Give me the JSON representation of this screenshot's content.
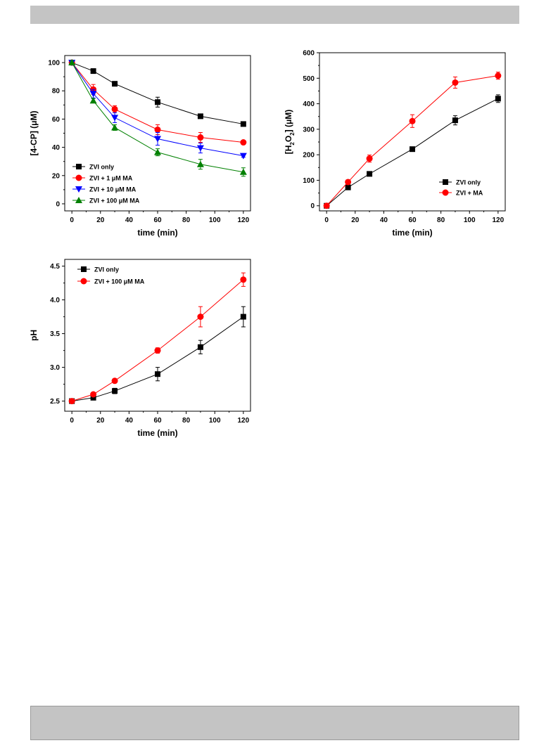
{
  "chart_data": [
    {
      "id": "chart1",
      "type": "line",
      "xlabel": "time (min)",
      "ylabel": "[4-CP]  (μM)",
      "xlim": [
        -5,
        125
      ],
      "ylim": [
        -5,
        105
      ],
      "xticks": [
        0,
        20,
        40,
        60,
        80,
        100,
        120
      ],
      "yticks": [
        0,
        20,
        40,
        60,
        80,
        100
      ],
      "grid": false,
      "legend_position": "bottom-left",
      "series": [
        {
          "name": "ZVI only",
          "color": "#000000",
          "marker": "square",
          "x": [
            0,
            15,
            30,
            60,
            90,
            120
          ],
          "y": [
            100,
            94,
            85,
            72,
            62,
            56.5
          ],
          "err": [
            1.5,
            1.5,
            1.5,
            3.5,
            1.5,
            1
          ]
        },
        {
          "name": "ZVI + 1 μM MA",
          "color": "#ff0000",
          "marker": "circle",
          "x": [
            0,
            15,
            30,
            60,
            90,
            120
          ],
          "y": [
            100,
            81,
            67,
            52.5,
            47,
            43.5
          ],
          "err": [
            1.5,
            3.5,
            2.5,
            3.5,
            3.5,
            1
          ]
        },
        {
          "name": "ZVI + 10 μM MA",
          "color": "#0000ff",
          "marker": "triangle-down",
          "x": [
            0,
            15,
            30,
            60,
            90,
            120
          ],
          "y": [
            100,
            78,
            61,
            46,
            39.5,
            34
          ],
          "err": [
            1.5,
            3,
            3.5,
            4.5,
            3.5,
            1
          ]
        },
        {
          "name": "ZVI + 100 μM MA",
          "color": "#008000",
          "marker": "triangle-up",
          "x": [
            0,
            15,
            30,
            60,
            90,
            120
          ],
          "y": [
            100,
            73,
            54,
            36.5,
            28,
            22.5
          ],
          "err": [
            1.5,
            1.5,
            2,
            2.5,
            3.5,
            3
          ]
        }
      ]
    },
    {
      "id": "chart2",
      "type": "line",
      "xlabel": "time (min)",
      "ylabel_parts": [
        "[H",
        "2",
        "O",
        "2",
        "]  (μM)"
      ],
      "xlim": [
        -5,
        125
      ],
      "ylim": [
        -20,
        600
      ],
      "xticks": [
        0,
        20,
        40,
        60,
        80,
        100,
        120
      ],
      "yticks": [
        0,
        100,
        200,
        300,
        400,
        500,
        600
      ],
      "grid": false,
      "legend_position": "bottom-right",
      "series": [
        {
          "name": "ZVI only",
          "color": "#000000",
          "marker": "square",
          "x": [
            0,
            15,
            30,
            60,
            90,
            120
          ],
          "y": [
            0,
            72,
            125,
            222,
            335,
            420
          ],
          "err": [
            5,
            6,
            6,
            8,
            18,
            15
          ]
        },
        {
          "name": "ZVI + MA",
          "color": "#ff0000",
          "marker": "circle",
          "x": [
            0,
            15,
            30,
            60,
            90,
            120
          ],
          "y": [
            0,
            93,
            185,
            332,
            483,
            510
          ],
          "err": [
            5,
            8,
            14,
            25,
            22,
            14
          ]
        }
      ]
    },
    {
      "id": "chart3",
      "type": "line",
      "xlabel": "time (min)",
      "ylabel": "pH",
      "xlim": [
        -5,
        125
      ],
      "ylim": [
        2.35,
        4.6
      ],
      "xticks": [
        0,
        20,
        40,
        60,
        80,
        100,
        120
      ],
      "yticks": [
        2.5,
        3.0,
        3.5,
        4.0,
        4.5
      ],
      "yformat": 1,
      "grid": false,
      "legend_position": "top-left",
      "series": [
        {
          "name": "ZVI only",
          "color": "#000000",
          "marker": "square",
          "x": [
            0,
            15,
            30,
            60,
            90,
            120
          ],
          "y": [
            2.5,
            2.55,
            2.65,
            2.9,
            3.3,
            3.75
          ],
          "err": [
            0.02,
            0.03,
            0.04,
            0.1,
            0.1,
            0.15
          ]
        },
        {
          "name": "ZVI + 100 μM MA",
          "color": "#ff0000",
          "marker": "circle",
          "x": [
            0,
            15,
            30,
            60,
            90,
            120
          ],
          "y": [
            2.5,
            2.6,
            2.8,
            3.25,
            3.75,
            4.3
          ],
          "err": [
            0.02,
            0.02,
            0.03,
            0.04,
            0.15,
            0.1
          ]
        }
      ]
    }
  ]
}
